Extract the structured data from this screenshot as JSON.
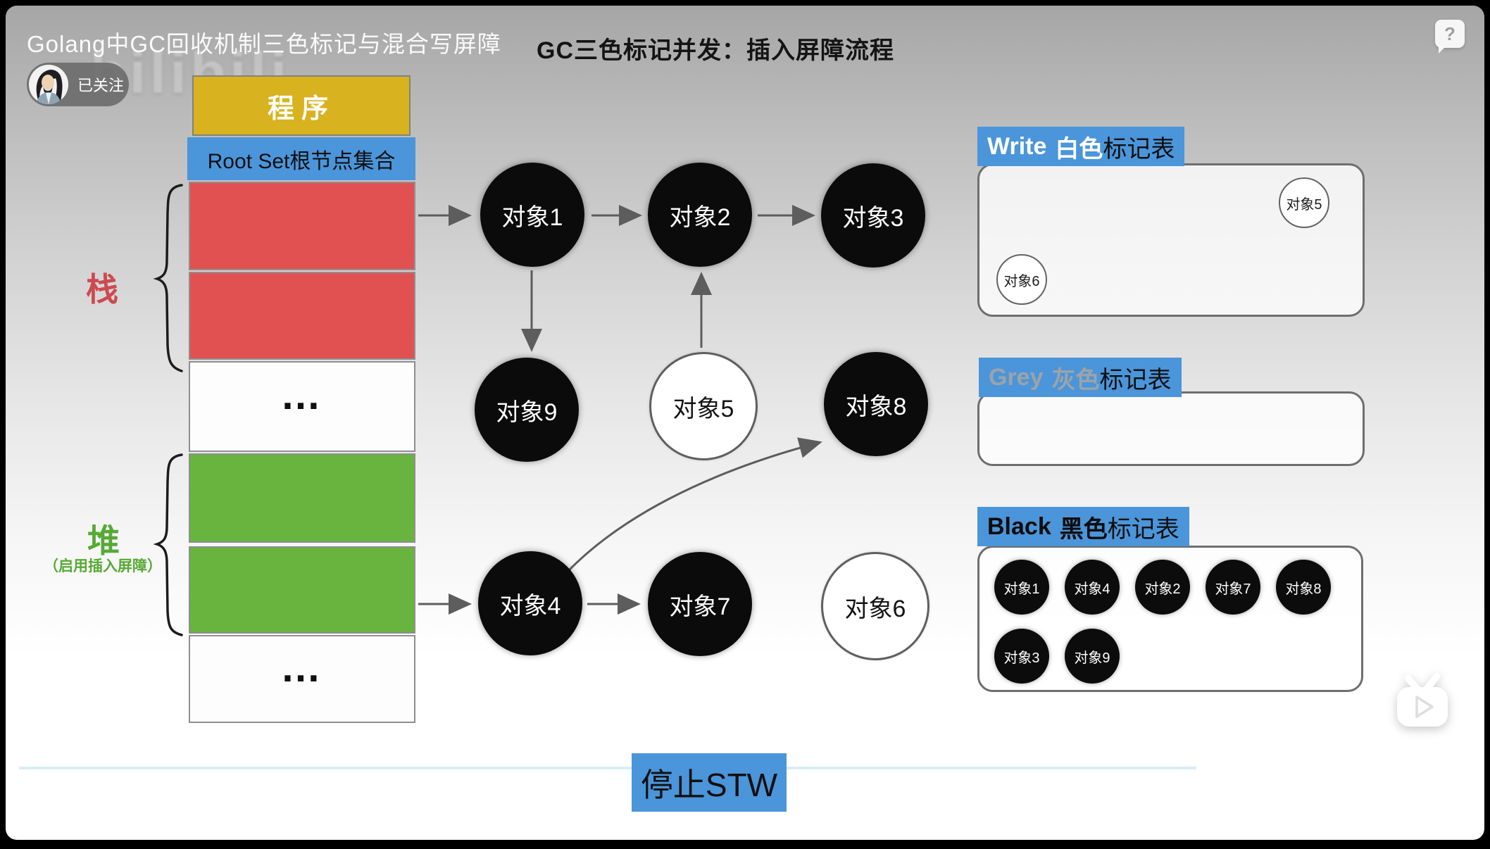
{
  "app": {
    "video_title": "Golang中GC回收机制三色标记与混合写屏障",
    "follow_label": "已关注",
    "help_label": "?",
    "watermark": "bilibili"
  },
  "slide": {
    "title": "GC三色标记并发：插入屏障流程",
    "status_banner": "停止STW"
  },
  "memory": {
    "program_label": "程序",
    "root_set_label": "Root Set根节点集合",
    "stack_label": "栈",
    "heap_label": "堆",
    "heap_note": "（启用插入屏障）",
    "ellipsis": "…",
    "colors": {
      "program": "#d8b21f",
      "root_set": "#4b95da",
      "stack": "#e25151",
      "heap": "#68b43e"
    }
  },
  "graph": {
    "nodes": [
      {
        "id": "obj1",
        "label": "对象1",
        "color": "black"
      },
      {
        "id": "obj2",
        "label": "对象2",
        "color": "black"
      },
      {
        "id": "obj3",
        "label": "对象3",
        "color": "black"
      },
      {
        "id": "obj9",
        "label": "对象9",
        "color": "black"
      },
      {
        "id": "obj5",
        "label": "对象5",
        "color": "white"
      },
      {
        "id": "obj8",
        "label": "对象8",
        "color": "black"
      },
      {
        "id": "obj4",
        "label": "对象4",
        "color": "black"
      },
      {
        "id": "obj7",
        "label": "对象7",
        "color": "black"
      },
      {
        "id": "obj6",
        "label": "对象6",
        "color": "white"
      }
    ],
    "edges": [
      {
        "from": "RootSet栈",
        "to": "对象1"
      },
      {
        "from": "对象1",
        "to": "对象2"
      },
      {
        "from": "对象2",
        "to": "对象3"
      },
      {
        "from": "对象1",
        "to": "对象9"
      },
      {
        "from": "对象5",
        "to": "对象2"
      },
      {
        "from": "堆",
        "to": "对象4"
      },
      {
        "from": "对象4",
        "to": "对象7"
      },
      {
        "from": "对象4",
        "to": "对象8"
      }
    ]
  },
  "tables": {
    "white": {
      "title_en": "Write",
      "title_color": "白色",
      "title_suffix": "标记表",
      "items": [
        "对象5",
        "对象6"
      ]
    },
    "grey": {
      "title_en": "Grey",
      "title_color": "灰色",
      "title_suffix": "标记表",
      "items": []
    },
    "black": {
      "title_en": "Black",
      "title_color": "黑色",
      "title_suffix": "标记表",
      "items": [
        "对象1",
        "对象4",
        "对象2",
        "对象7",
        "对象8",
        "对象3",
        "对象9"
      ]
    }
  },
  "accent": {
    "blue": "#4b95da"
  }
}
